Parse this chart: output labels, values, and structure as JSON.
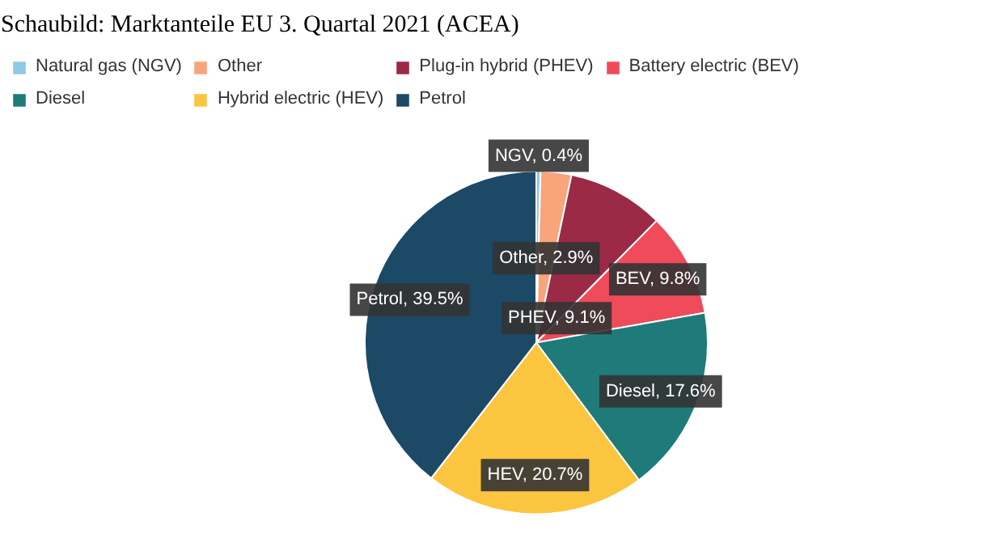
{
  "chart_data": {
    "type": "pie",
    "title": "Schaubild: Marktanteile EU 3. Quartal 2021 (ACEA)",
    "categories": [
      "Natural gas (NGV)",
      "Other",
      "Plug-in hybrid (PHEV)",
      "Battery electric (BEV)",
      "Diesel",
      "Hybrid electric (HEV)",
      "Petrol"
    ],
    "values": [
      0.4,
      2.9,
      9.1,
      9.8,
      17.6,
      20.7,
      39.5
    ],
    "colors": [
      "#8ecae6",
      "#f9a47a",
      "#9b2a47",
      "#ef4b5a",
      "#1e7b7a",
      "#fcc53f",
      "#1c4966"
    ],
    "value_labels": [
      "NGV, 0.4%",
      "Other, 2.9%",
      "PHEV, 9.1%",
      "BEV, 9.8%",
      "Diesel, 17.6%",
      "HEV, 20.7%",
      "Petrol, 39.5%"
    ],
    "legend": "top left"
  }
}
